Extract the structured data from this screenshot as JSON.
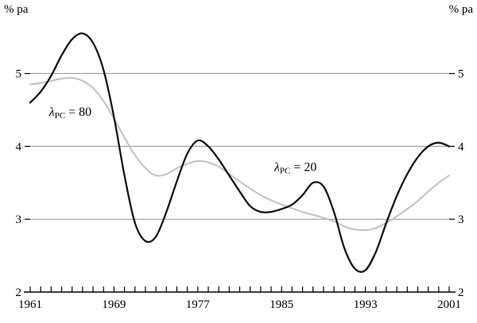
{
  "chart_data": {
    "type": "line",
    "title": "",
    "ylabel_left": "% pa",
    "ylabel_right": "% pa",
    "ylim": [
      2,
      5.9
    ],
    "yticks": [
      2,
      3,
      4,
      5
    ],
    "gridlines": [
      3,
      4,
      5
    ],
    "x": [
      1961,
      1962,
      1963,
      1964,
      1965,
      1966,
      1967,
      1968,
      1969,
      1970,
      1971,
      1972,
      1973,
      1974,
      1975,
      1976,
      1977,
      1978,
      1979,
      1980,
      1981,
      1982,
      1983,
      1984,
      1985,
      1986,
      1987,
      1988,
      1989,
      1990,
      1991,
      1992,
      1993,
      1994,
      1995,
      1996,
      1997,
      1998,
      1999,
      2000,
      2001
    ],
    "xtick_labels": [
      "1961",
      "1969",
      "1977",
      "1985",
      "1993",
      "2001"
    ],
    "series": [
      {
        "name": "lambda-pc-80",
        "label": {
          "symbol": "λ",
          "sub": "PC",
          "rest": " = 80"
        },
        "color": "#c3c3c3",
        "width": 2.1,
        "values": [
          4.85,
          4.87,
          4.9,
          4.93,
          4.94,
          4.9,
          4.8,
          4.62,
          4.38,
          4.12,
          3.88,
          3.7,
          3.6,
          3.62,
          3.7,
          3.76,
          3.8,
          3.78,
          3.72,
          3.62,
          3.52,
          3.42,
          3.33,
          3.26,
          3.2,
          3.15,
          3.1,
          3.06,
          3.02,
          2.97,
          2.9,
          2.86,
          2.85,
          2.88,
          2.95,
          3.04,
          3.14,
          3.25,
          3.38,
          3.5,
          3.6
        ]
      },
      {
        "name": "lambda-pc-20",
        "label": {
          "symbol": "λ",
          "sub": "PC",
          "rest": " = 20"
        },
        "color": "#141414",
        "width": 2.3,
        "values": [
          4.6,
          4.75,
          4.97,
          5.25,
          5.47,
          5.55,
          5.42,
          5.05,
          4.4,
          3.6,
          2.95,
          2.7,
          2.76,
          3.1,
          3.52,
          3.9,
          4.08,
          4.0,
          3.82,
          3.6,
          3.38,
          3.18,
          3.1,
          3.1,
          3.14,
          3.2,
          3.33,
          3.5,
          3.45,
          3.1,
          2.6,
          2.32,
          2.3,
          2.55,
          2.95,
          3.32,
          3.62,
          3.85,
          4.0,
          4.05,
          4.0
        ]
      }
    ],
    "annotations": [
      {
        "series": "lambda-pc-80",
        "x": 1962.8,
        "y": 4.42
      },
      {
        "series": "lambda-pc-20",
        "x": 1984.3,
        "y": 3.66
      }
    ],
    "colors": {
      "grid": "#8f8f8f",
      "axis": "#000000",
      "background": "#ffffff"
    }
  }
}
